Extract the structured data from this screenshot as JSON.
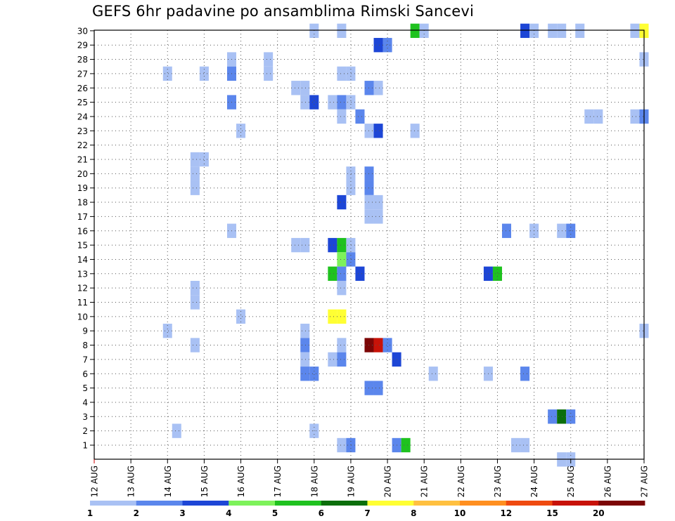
{
  "chart_data": {
    "type": "heatmap",
    "title": "GEFS 6hr padavine po ansamblima Rimski Sancevi",
    "xlabel": "",
    "ylabel": "",
    "x_ticks": [
      "12 AUG",
      "13 AUG",
      "14 AUG",
      "15 AUG",
      "16 AUG",
      "17 AUG",
      "18 AUG",
      "19 AUG",
      "20 AUG",
      "21 AUG",
      "22 AUG",
      "23 AUG",
      "24 AUG",
      "25 AUG",
      "26 AUG",
      "27 AUG"
    ],
    "y_ticks": [
      "1",
      "2",
      "3",
      "4",
      "5",
      "6",
      "7",
      "8",
      "9",
      "10",
      "11",
      "12",
      "13",
      "14",
      "15",
      "16",
      "17",
      "18",
      "19",
      "20",
      "21",
      "22",
      "23",
      "24",
      "25",
      "26",
      "27",
      "28",
      "29",
      "30"
    ],
    "grid": true,
    "colorbar": {
      "levels": [
        "1",
        "2",
        "3",
        "4",
        "5",
        "6",
        "7",
        "8",
        "10",
        "12",
        "15",
        "20"
      ],
      "colors": [
        "#a9c1f4",
        "#5b86ec",
        "#1d46d6",
        "#7df25a",
        "#1fc21f",
        "#0b6e0b",
        "#ffff33",
        "#ffc040",
        "#ff8f20",
        "#ef4a10",
        "#c81208",
        "#7c0606"
      ],
      "placement": "bottom"
    },
    "cells": [
      {
        "member": 30,
        "day": 18.0,
        "cat": 0
      },
      {
        "member": 30,
        "day": 18.75,
        "cat": 0
      },
      {
        "member": 30,
        "day": 20.75,
        "cat": 4
      },
      {
        "member": 30,
        "day": 21.0,
        "cat": 0
      },
      {
        "member": 30,
        "day": 23.75,
        "cat": 2
      },
      {
        "member": 30,
        "day": 24.0,
        "cat": 0
      },
      {
        "member": 30,
        "day": 24.5,
        "cat": 0
      },
      {
        "member": 30,
        "day": 24.75,
        "cat": 0
      },
      {
        "member": 30,
        "day": 25.25,
        "cat": 0
      },
      {
        "member": 30,
        "day": 26.75,
        "cat": 0
      },
      {
        "member": 30,
        "day": 27.0,
        "cat": 6
      },
      {
        "member": 29,
        "day": 19.75,
        "cat": 2
      },
      {
        "member": 29,
        "day": 20.0,
        "cat": 1
      },
      {
        "member": 28,
        "day": 15.75,
        "cat": 0
      },
      {
        "member": 28,
        "day": 16.75,
        "cat": 0
      },
      {
        "member": 28,
        "day": 27.0,
        "cat": 0
      },
      {
        "member": 27,
        "day": 14.0,
        "cat": 0
      },
      {
        "member": 27,
        "day": 15.0,
        "cat": 0
      },
      {
        "member": 27,
        "day": 15.75,
        "cat": 1
      },
      {
        "member": 27,
        "day": 16.75,
        "cat": 0
      },
      {
        "member": 27,
        "day": 18.75,
        "cat": 0
      },
      {
        "member": 27,
        "day": 19.0,
        "cat": 0
      },
      {
        "member": 26,
        "day": 17.5,
        "cat": 0
      },
      {
        "member": 26,
        "day": 17.75,
        "cat": 0
      },
      {
        "member": 26,
        "day": 19.5,
        "cat": 1
      },
      {
        "member": 26,
        "day": 19.75,
        "cat": 0
      },
      {
        "member": 25,
        "day": 15.75,
        "cat": 1
      },
      {
        "member": 25,
        "day": 17.75,
        "cat": 0
      },
      {
        "member": 25,
        "day": 18.0,
        "cat": 2
      },
      {
        "member": 25,
        "day": 18.5,
        "cat": 0
      },
      {
        "member": 25,
        "day": 18.75,
        "cat": 1
      },
      {
        "member": 25,
        "day": 19.0,
        "cat": 0
      },
      {
        "member": 24,
        "day": 18.75,
        "cat": 0
      },
      {
        "member": 24,
        "day": 19.25,
        "cat": 1
      },
      {
        "member": 24,
        "day": 25.5,
        "cat": 0
      },
      {
        "member": 24,
        "day": 25.75,
        "cat": 0
      },
      {
        "member": 24,
        "day": 26.75,
        "cat": 0
      },
      {
        "member": 24,
        "day": 27.0,
        "cat": 1
      },
      {
        "member": 23,
        "day": 16.0,
        "cat": 0
      },
      {
        "member": 23,
        "day": 19.5,
        "cat": 0
      },
      {
        "member": 23,
        "day": 19.75,
        "cat": 2
      },
      {
        "member": 23,
        "day": 20.75,
        "cat": 0
      },
      {
        "member": 21,
        "day": 14.75,
        "cat": 0
      },
      {
        "member": 21,
        "day": 15.0,
        "cat": 0
      },
      {
        "member": 20,
        "day": 14.75,
        "cat": 0
      },
      {
        "member": 20,
        "day": 19.0,
        "cat": 0
      },
      {
        "member": 20,
        "day": 19.5,
        "cat": 1
      },
      {
        "member": 19,
        "day": 14.75,
        "cat": 0
      },
      {
        "member": 19,
        "day": 19.0,
        "cat": 0
      },
      {
        "member": 19,
        "day": 19.5,
        "cat": 1
      },
      {
        "member": 18,
        "day": 18.75,
        "cat": 2
      },
      {
        "member": 18,
        "day": 19.5,
        "cat": 0
      },
      {
        "member": 18,
        "day": 19.75,
        "cat": 0
      },
      {
        "member": 17,
        "day": 19.5,
        "cat": 0
      },
      {
        "member": 17,
        "day": 19.75,
        "cat": 0
      },
      {
        "member": 16,
        "day": 15.75,
        "cat": 0
      },
      {
        "member": 16,
        "day": 23.25,
        "cat": 1
      },
      {
        "member": 16,
        "day": 24.0,
        "cat": 0
      },
      {
        "member": 16,
        "day": 24.75,
        "cat": 0
      },
      {
        "member": 16,
        "day": 25.0,
        "cat": 1
      },
      {
        "member": 15,
        "day": 17.5,
        "cat": 0
      },
      {
        "member": 15,
        "day": 17.75,
        "cat": 0
      },
      {
        "member": 15,
        "day": 18.5,
        "cat": 2
      },
      {
        "member": 15,
        "day": 18.75,
        "cat": 4
      },
      {
        "member": 15,
        "day": 19.0,
        "cat": 0
      },
      {
        "member": 14,
        "day": 18.75,
        "cat": 3
      },
      {
        "member": 14,
        "day": 19.0,
        "cat": 1
      },
      {
        "member": 13,
        "day": 18.5,
        "cat": 4
      },
      {
        "member": 13,
        "day": 18.75,
        "cat": 1
      },
      {
        "member": 13,
        "day": 19.25,
        "cat": 2
      },
      {
        "member": 13,
        "day": 22.75,
        "cat": 2
      },
      {
        "member": 13,
        "day": 23.0,
        "cat": 4
      },
      {
        "member": 12,
        "day": 14.75,
        "cat": 0
      },
      {
        "member": 12,
        "day": 18.75,
        "cat": 0
      },
      {
        "member": 11,
        "day": 14.75,
        "cat": 0
      },
      {
        "member": 10,
        "day": 16.0,
        "cat": 0
      },
      {
        "member": 10,
        "day": 18.5,
        "cat": 6
      },
      {
        "member": 10,
        "day": 18.75,
        "cat": 6
      },
      {
        "member": 9,
        "day": 14.0,
        "cat": 0
      },
      {
        "member": 9,
        "day": 17.75,
        "cat": 0
      },
      {
        "member": 9,
        "day": 27.0,
        "cat": 0
      },
      {
        "member": 8,
        "day": 14.75,
        "cat": 0
      },
      {
        "member": 8,
        "day": 17.75,
        "cat": 1
      },
      {
        "member": 8,
        "day": 18.75,
        "cat": 0
      },
      {
        "member": 8,
        "day": 19.5,
        "cat": 11
      },
      {
        "member": 8,
        "day": 19.75,
        "cat": 10
      },
      {
        "member": 8,
        "day": 20.0,
        "cat": 1
      },
      {
        "member": 7,
        "day": 17.75,
        "cat": 0
      },
      {
        "member": 7,
        "day": 18.5,
        "cat": 0
      },
      {
        "member": 7,
        "day": 18.75,
        "cat": 1
      },
      {
        "member": 7,
        "day": 20.25,
        "cat": 2
      },
      {
        "member": 6,
        "day": 17.75,
        "cat": 1
      },
      {
        "member": 6,
        "day": 18.0,
        "cat": 1
      },
      {
        "member": 6,
        "day": 21.25,
        "cat": 0
      },
      {
        "member": 6,
        "day": 22.75,
        "cat": 0
      },
      {
        "member": 6,
        "day": 23.75,
        "cat": 1
      },
      {
        "member": 5,
        "day": 19.5,
        "cat": 1
      },
      {
        "member": 5,
        "day": 19.75,
        "cat": 1
      },
      {
        "member": 3,
        "day": 24.5,
        "cat": 1
      },
      {
        "member": 3,
        "day": 24.75,
        "cat": 5
      },
      {
        "member": 3,
        "day": 25.0,
        "cat": 1
      },
      {
        "member": 2,
        "day": 14.25,
        "cat": 0
      },
      {
        "member": 2,
        "day": 18.0,
        "cat": 0
      },
      {
        "member": 1,
        "day": 18.75,
        "cat": 0
      },
      {
        "member": 1,
        "day": 19.0,
        "cat": 1
      },
      {
        "member": 1,
        "day": 20.25,
        "cat": 1
      },
      {
        "member": 1,
        "day": 20.5,
        "cat": 4
      },
      {
        "member": 1,
        "day": 23.5,
        "cat": 0
      },
      {
        "member": 1,
        "day": 23.75,
        "cat": 0
      },
      {
        "member": 0,
        "day": 24.75,
        "cat": 0
      },
      {
        "member": 0,
        "day": 25.0,
        "cat": 0
      }
    ]
  }
}
